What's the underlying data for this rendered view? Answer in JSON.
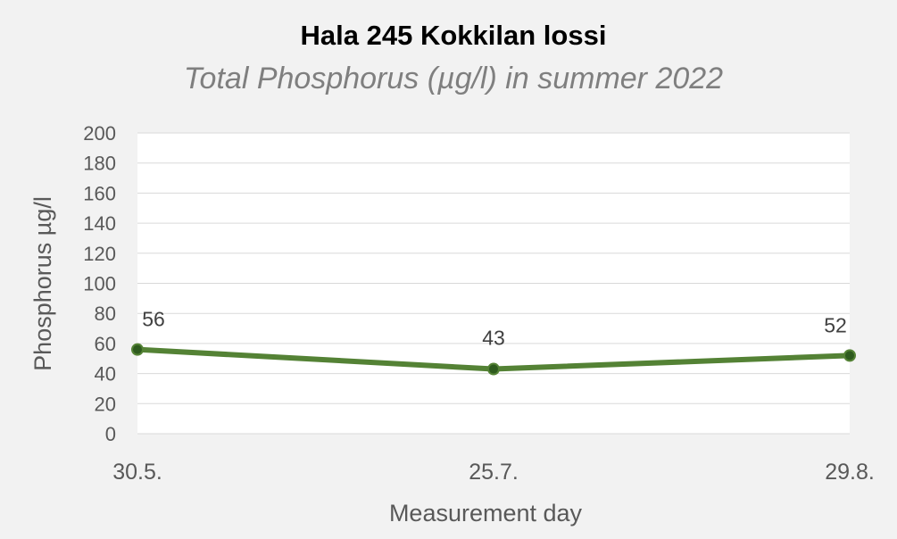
{
  "chart_data": {
    "type": "line",
    "title": "Hala 245 Kokkilan lossi",
    "subtitle": "Total Phosphorus (µg/l) in summer 2022",
    "xlabel": "Measurement day",
    "ylabel": "Phosphorus µg/l",
    "categories": [
      "30.5.",
      "25.7.",
      "29.8."
    ],
    "series": [
      {
        "values": [
          56,
          43,
          52
        ]
      }
    ],
    "data_labels": [
      "56",
      "43",
      "52"
    ],
    "ylim": [
      0,
      200
    ],
    "yticks": [
      "0",
      "20",
      "40",
      "60",
      "80",
      "100",
      "120",
      "140",
      "160",
      "180",
      "200"
    ],
    "grid": true,
    "legend": "none",
    "colors": {
      "line": "#548235",
      "marker_fill": "#2e5b1e",
      "background": "#f2f2f2",
      "plot_area": "#ffffff"
    }
  }
}
